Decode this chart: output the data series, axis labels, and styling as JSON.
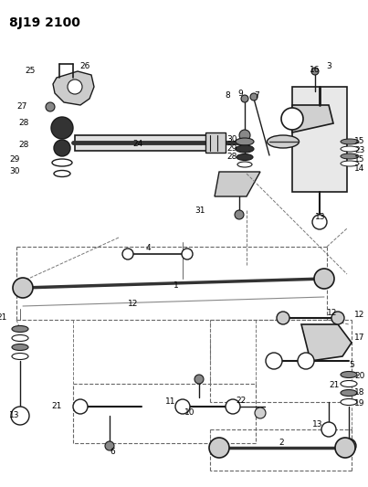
{
  "title": "8J19 2100",
  "bg_color": "#ffffff",
  "line_color": "#1a1a1a",
  "gray_dark": "#333333",
  "gray_mid": "#888888",
  "gray_light": "#cccccc",
  "dpi": 100,
  "fig_w": 4.03,
  "fig_h": 5.33,
  "pw": 403,
  "ph": 533
}
